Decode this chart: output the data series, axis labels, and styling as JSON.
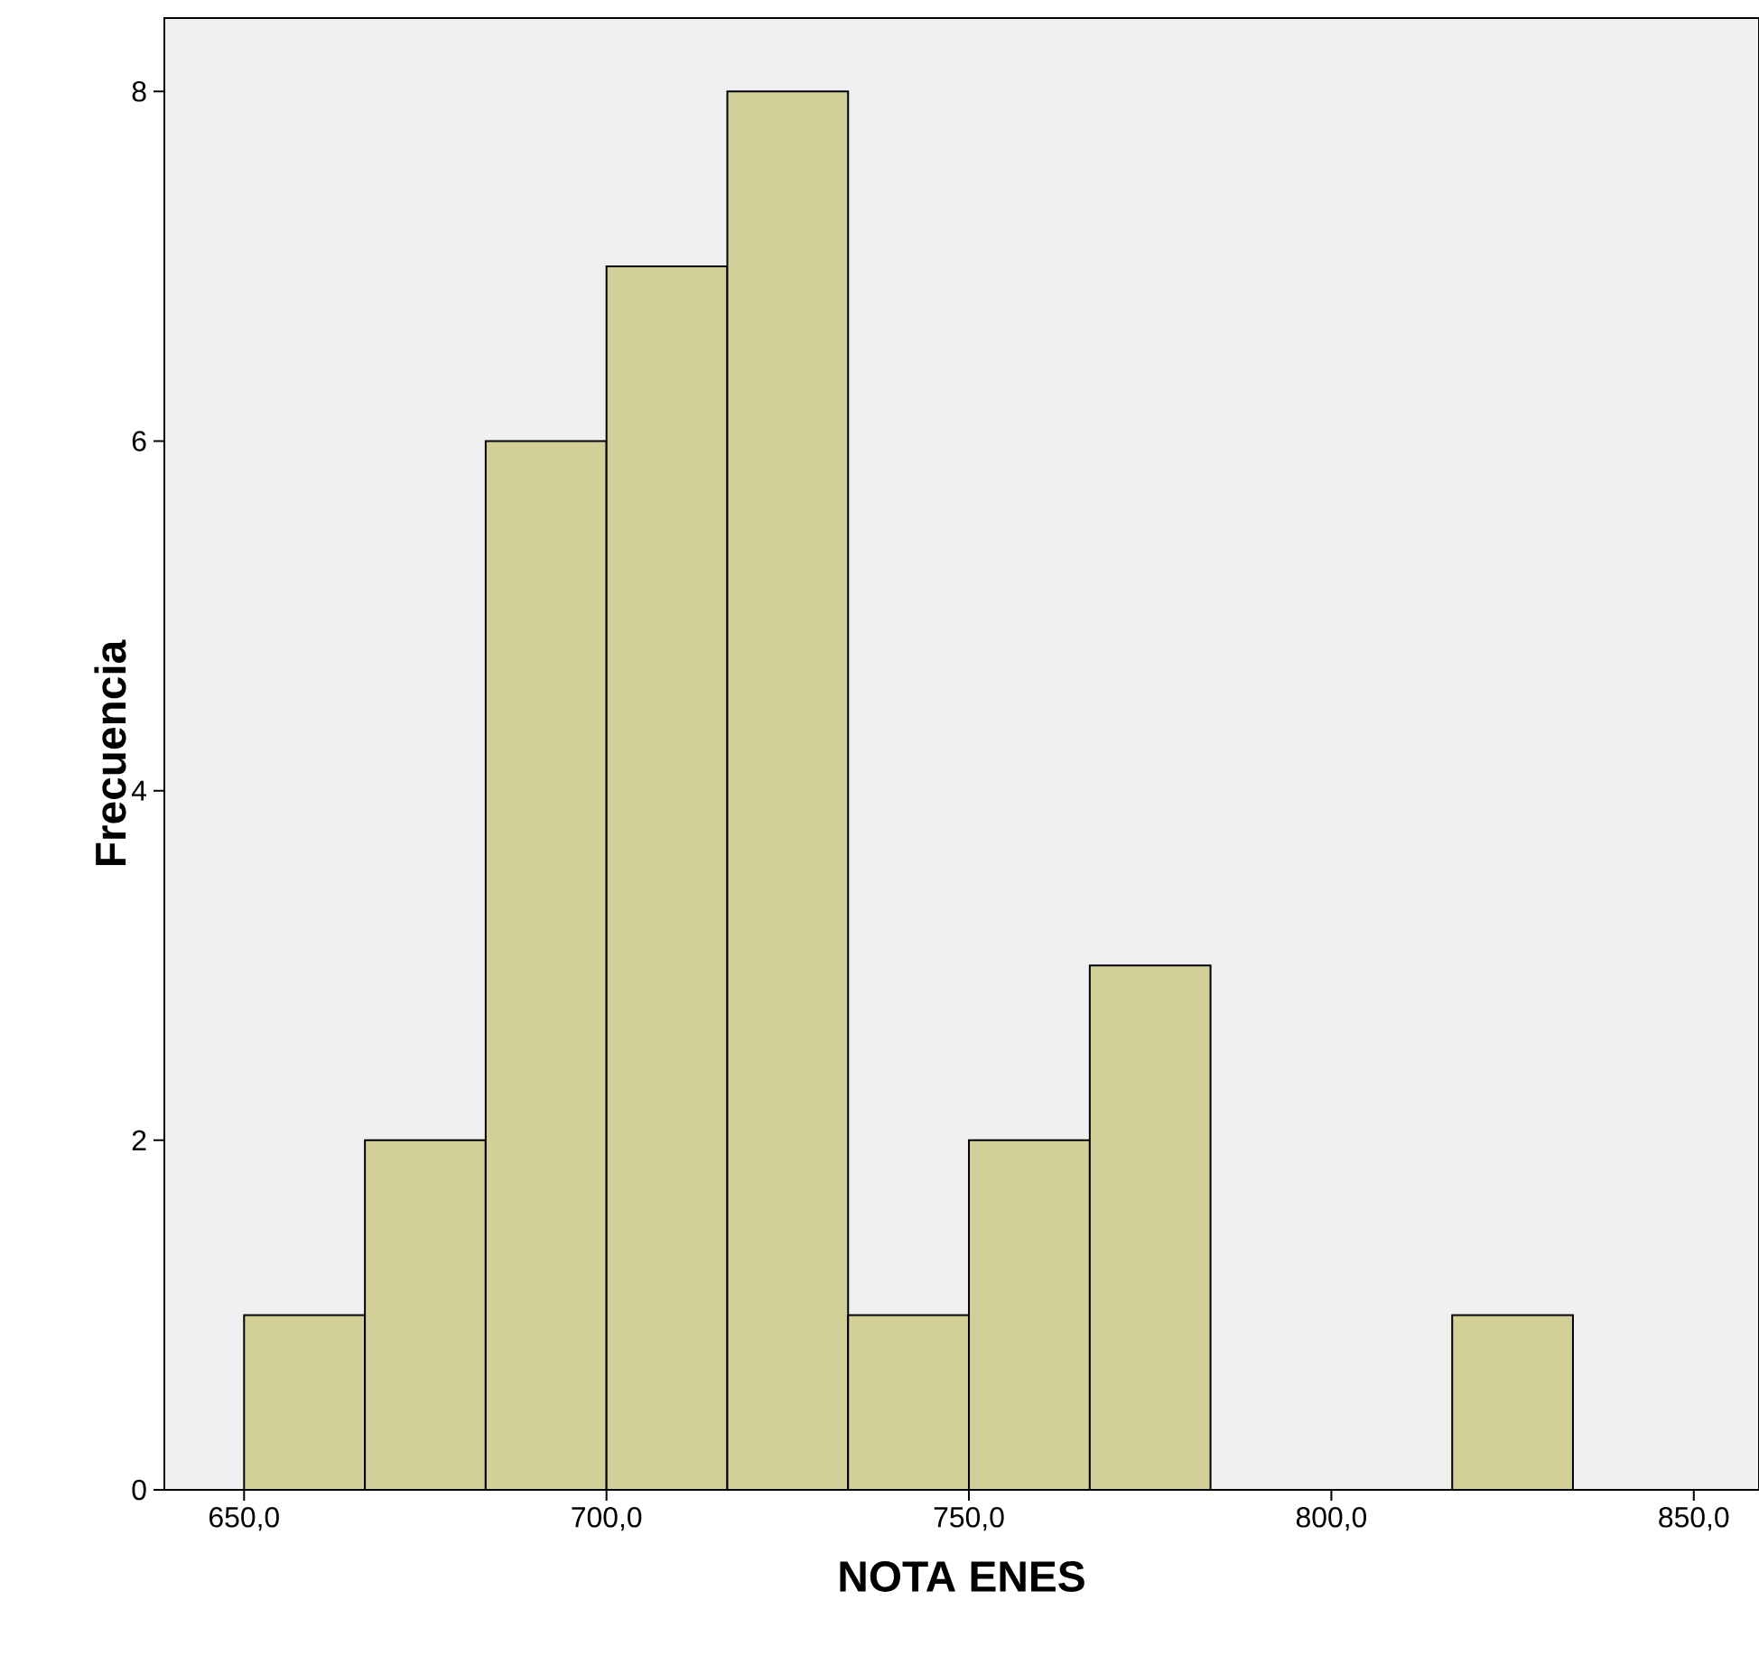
{
  "chart_data": {
    "type": "histogram",
    "xlabel": "NOTA ENES",
    "ylabel": "Frecuencia",
    "bins": [
      650,
      666.67,
      683.33,
      700,
      716.67,
      733.33,
      750,
      766.67,
      783.33,
      800,
      816.67,
      833.33
    ],
    "values": [
      1,
      2,
      6,
      7,
      8,
      1,
      2,
      3,
      0,
      0,
      1
    ],
    "color": "#d3cf98",
    "xlim": [
      639,
      859
    ],
    "ylim": [
      0,
      8.42
    ],
    "xticks": [
      {
        "value": 650,
        "label": "650,0"
      },
      {
        "value": 700,
        "label": "700,0"
      },
      {
        "value": 750,
        "label": "750,0"
      },
      {
        "value": 800,
        "label": "800,0"
      },
      {
        "value": 850,
        "label": "850,0"
      }
    ],
    "yticks": [
      0,
      2,
      4,
      6,
      8
    ],
    "grid": false
  }
}
